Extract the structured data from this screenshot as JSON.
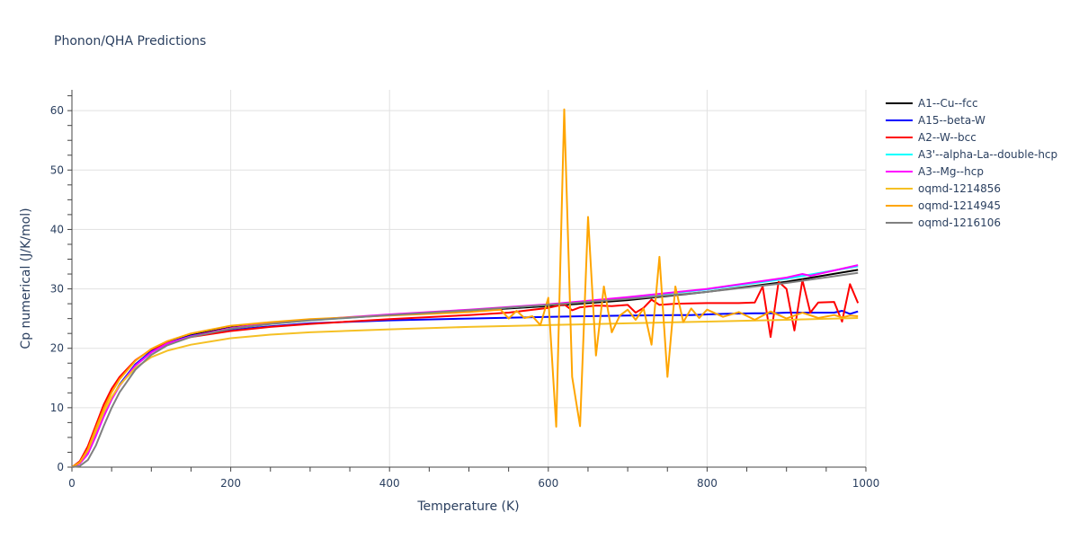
{
  "chart_data": {
    "type": "line",
    "title": "Phonon/QHA Predictions",
    "xlabel": "Temperature (K)",
    "ylabel": "Cp numerical (J/K/mol)",
    "xlim": [
      0,
      1000
    ],
    "ylim": [
      0,
      63.5
    ],
    "xticks": [
      0,
      200,
      400,
      600,
      800,
      1000
    ],
    "yticks": [
      0,
      10,
      20,
      30,
      40,
      50,
      60
    ],
    "grid": true,
    "legend_position": "top-right",
    "series": [
      {
        "name": "A1--Cu--fcc",
        "color": "#000000",
        "x": [
          0,
          10,
          20,
          30,
          40,
          50,
          60,
          80,
          100,
          120,
          150,
          200,
          250,
          300,
          400,
          500,
          600,
          700,
          800,
          900,
          990
        ],
        "y": [
          0,
          0.7,
          2.5,
          5.5,
          8.8,
          11.6,
          13.9,
          17.3,
          19.5,
          20.9,
          22.2,
          23.5,
          24.2,
          24.8,
          25.6,
          26.3,
          27.1,
          28.1,
          29.5,
          31.2,
          33.2
        ]
      },
      {
        "name": "A15--beta-W",
        "color": "#0000ff",
        "x": [
          0,
          10,
          20,
          30,
          40,
          50,
          60,
          80,
          100,
          120,
          150,
          200,
          250,
          300,
          400,
          500,
          600,
          700,
          740,
          760,
          780,
          800,
          820,
          840,
          860,
          880,
          900,
          920,
          940,
          960,
          970,
          980,
          990
        ],
        "y": [
          0,
          0.7,
          2.5,
          5.5,
          8.8,
          11.6,
          13.9,
          17.3,
          19.5,
          20.9,
          22.1,
          23.1,
          23.7,
          24.2,
          24.7,
          25.0,
          25.3,
          25.5,
          25.55,
          25.6,
          25.6,
          25.7,
          25.8,
          25.85,
          25.9,
          25.9,
          26.0,
          26.0,
          26.0,
          26.0,
          26.3,
          25.8,
          26.2
        ]
      },
      {
        "name": "A2--W--bcc",
        "color": "#ff0000",
        "x": [
          0,
          10,
          20,
          30,
          40,
          50,
          60,
          80,
          100,
          120,
          150,
          200,
          250,
          300,
          400,
          500,
          550,
          600,
          620,
          630,
          640,
          660,
          680,
          700,
          710,
          720,
          730,
          740,
          760,
          800,
          840,
          860,
          870,
          880,
          890,
          900,
          910,
          920,
          930,
          940,
          960,
          970,
          980,
          990
        ],
        "y": [
          0,
          1.0,
          3.5,
          7.0,
          10.5,
          13.2,
          15.2,
          18.0,
          19.8,
          20.9,
          21.9,
          22.9,
          23.6,
          24.1,
          24.9,
          25.6,
          26.0,
          26.8,
          27.4,
          26.4,
          26.9,
          27.2,
          27.1,
          27.3,
          26.0,
          26.8,
          28.2,
          27.3,
          27.5,
          27.6,
          27.6,
          27.7,
          30.4,
          21.9,
          31.2,
          30.0,
          23.0,
          31.5,
          26.0,
          27.7,
          27.8,
          24.5,
          30.8,
          27.6
        ]
      },
      {
        "name": "A3'--alpha-La--double-hcp",
        "color": "#00ffff",
        "x": [
          0,
          10,
          20,
          30,
          40,
          50,
          60,
          80,
          100,
          120,
          150,
          200,
          250,
          300,
          400,
          500,
          600,
          700,
          800,
          900,
          990
        ],
        "y": [
          0,
          0.6,
          2.2,
          5.2,
          8.5,
          11.4,
          13.7,
          17.1,
          19.3,
          20.8,
          22.0,
          23.3,
          24.1,
          24.7,
          25.6,
          26.4,
          27.3,
          28.5,
          29.9,
          31.7,
          33.8
        ]
      },
      {
        "name": "A3--Mg--hcp",
        "color": "#ff00ff",
        "x": [
          0,
          10,
          20,
          30,
          40,
          50,
          60,
          80,
          100,
          120,
          150,
          200,
          250,
          300,
          400,
          500,
          600,
          700,
          800,
          900,
          920,
          930,
          990
        ],
        "y": [
          0,
          0.6,
          2.2,
          5.2,
          8.5,
          11.4,
          13.7,
          17.1,
          19.3,
          20.8,
          22.0,
          23.4,
          24.2,
          24.8,
          25.7,
          26.5,
          27.4,
          28.6,
          30.0,
          31.9,
          32.5,
          32.2,
          34.0
        ]
      },
      {
        "name": "oqmd-1214856",
        "color": "#f5c024",
        "x": [
          0,
          10,
          20,
          30,
          40,
          50,
          60,
          80,
          100,
          120,
          150,
          200,
          250,
          300,
          400,
          500,
          600,
          700,
          800,
          900,
          990
        ],
        "y": [
          0,
          0.8,
          2.8,
          6.0,
          9.2,
          11.8,
          13.8,
          16.7,
          18.5,
          19.6,
          20.6,
          21.7,
          22.3,
          22.7,
          23.2,
          23.6,
          23.9,
          24.2,
          24.5,
          24.8,
          25.1
        ]
      },
      {
        "name": "oqmd-1214945",
        "color": "#ffa500",
        "x": [
          0,
          10,
          20,
          30,
          40,
          50,
          60,
          80,
          100,
          120,
          150,
          200,
          250,
          300,
          400,
          450,
          500,
          540,
          550,
          560,
          570,
          580,
          590,
          600,
          610,
          620,
          630,
          640,
          650,
          660,
          670,
          680,
          690,
          700,
          710,
          720,
          730,
          740,
          750,
          760,
          770,
          780,
          790,
          800,
          820,
          840,
          860,
          880,
          900,
          920,
          940,
          960,
          970,
          980,
          990
        ],
        "y": [
          0,
          0.8,
          3.0,
          6.5,
          9.8,
          12.6,
          14.8,
          17.9,
          19.9,
          21.2,
          22.5,
          23.8,
          24.4,
          24.9,
          25.5,
          25.8,
          26.1,
          26.5,
          25.0,
          26.3,
          25.1,
          25.4,
          23.9,
          28.5,
          6.8,
          60.2,
          15.2,
          6.9,
          42.1,
          18.8,
          30.4,
          22.7,
          25.5,
          26.5,
          24.8,
          26.7,
          20.6,
          35.4,
          15.2,
          30.4,
          24.4,
          26.7,
          25.1,
          26.5,
          25.3,
          26.1,
          24.8,
          26.2,
          25.0,
          26.0,
          25.1,
          25.6,
          25.2,
          25.5,
          25.4
        ]
      },
      {
        "name": "oqmd-1216106",
        "color": "#808080",
        "x": [
          0,
          10,
          20,
          30,
          40,
          50,
          60,
          80,
          100,
          120,
          150,
          200,
          250,
          300,
          400,
          500,
          600,
          700,
          800,
          900,
          990
        ],
        "y": [
          0,
          0.2,
          1.2,
          3.6,
          6.9,
          10.0,
          12.6,
          16.4,
          18.9,
          20.5,
          21.9,
          23.3,
          24.1,
          24.7,
          25.6,
          26.4,
          27.3,
          28.3,
          29.5,
          31.0,
          32.7
        ]
      }
    ]
  }
}
